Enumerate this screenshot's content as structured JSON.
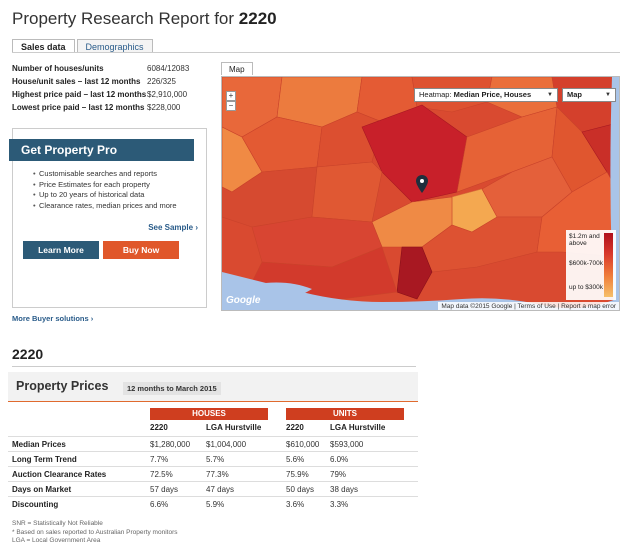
{
  "header": {
    "title_prefix": "Property Research Report for",
    "suburb": "2220"
  },
  "tabs": [
    {
      "label": "Sales data",
      "active": true
    },
    {
      "label": "Demographics",
      "active": false
    }
  ],
  "stats": [
    {
      "label": "Number of houses/units",
      "value": "6084/12083"
    },
    {
      "label": "House/unit sales – last 12 months",
      "value": "226/325"
    },
    {
      "label": "Highest price paid – last 12 months",
      "value": "$2,910,000"
    },
    {
      "label": "Lowest price paid – last 12 months",
      "value": "$228,000"
    }
  ],
  "promo": {
    "title": "Get Property Pro",
    "features": [
      "Customisable searches and reports",
      "Price Estimates for each property",
      "Up to 20 years of historical data",
      "Clearance rates, median prices and more"
    ],
    "see_sample": "See Sample ›",
    "learn_more": "Learn More",
    "buy_now": "Buy Now"
  },
  "more_buyer": "More Buyer solutions ›",
  "map": {
    "tab_label": "Map",
    "zoom_in": "+",
    "zoom_out": "−",
    "heatmap_label": "Heatmap:",
    "heatmap_value": "Median Price, Houses",
    "map_type": "Map",
    "legend": {
      "top": "$1.2m and above",
      "mid": "$600k-700k",
      "bottom": "up to $300k"
    },
    "logo": "Google",
    "footer": "Map data ©2015 Google  |  Terms of Use  |  Report a map error"
  },
  "suburb_heading": "2220",
  "property_prices": {
    "title": "Property Prices",
    "period": "12 months to March 2015",
    "group_houses": "HOUSES",
    "group_units": "UNITS",
    "columns": [
      "2220",
      "LGA Hurstville",
      "2220",
      "LGA Hurstville"
    ],
    "rows": [
      {
        "label": "Median Prices",
        "values": [
          "$1,280,000",
          "$1,004,000",
          "$610,000",
          "$593,000"
        ]
      },
      {
        "label": "Long Term Trend",
        "values": [
          "7.7%",
          "5.7%",
          "5.6%",
          "6.0%"
        ]
      },
      {
        "label": "Auction Clearance Rates",
        "values": [
          "72.5%",
          "77.3%",
          "75.9%",
          "79%"
        ]
      },
      {
        "label": "Days on Market",
        "values": [
          "57 days",
          "47 days",
          "50 days",
          "38 days"
        ]
      },
      {
        "label": "Discounting",
        "values": [
          "6.6%",
          "5.9%",
          "3.6%",
          "3.3%"
        ]
      }
    ],
    "footnotes": [
      "SNR = Statistically Not Reliable",
      "* Based on sales reported to Australian Property monitors",
      "LGA = Local Government Area"
    ]
  },
  "colors": {
    "navy": "#2c5a77",
    "orange": "#e0572a",
    "banner": "#cf3e1f",
    "link": "#2a5c8a"
  }
}
